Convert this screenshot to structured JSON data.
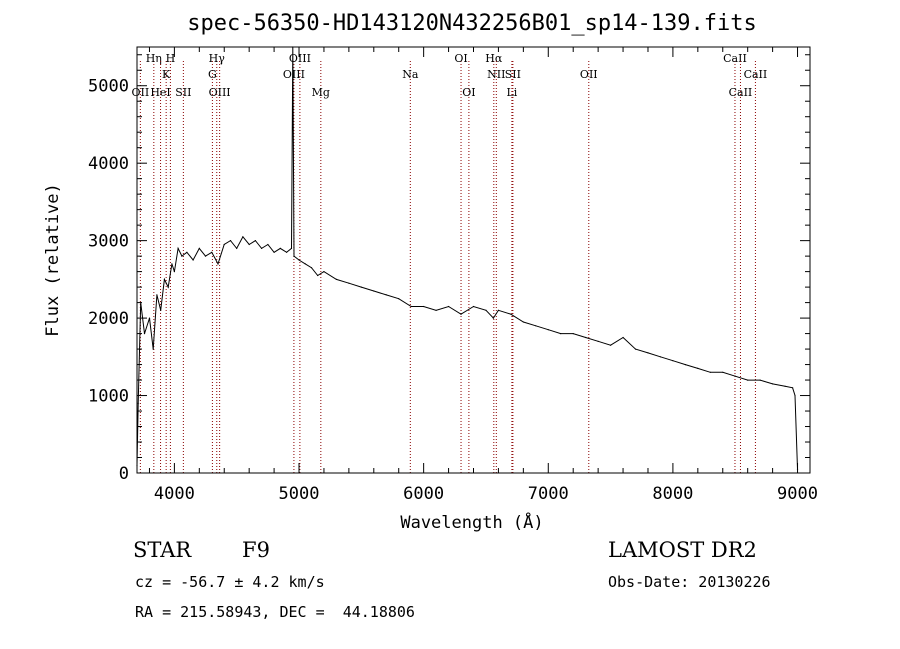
{
  "chart_data": {
    "type": "line",
    "title": "spec-56350-HD143120N432256B01_sp14-139.fits",
    "xlabel": "Wavelength (Å)",
    "ylabel": "Flux (relative)",
    "xlim": [
      3700,
      9100
    ],
    "ylim": [
      0,
      5500
    ],
    "x_ticks": [
      4000,
      5000,
      6000,
      7000,
      8000,
      9000
    ],
    "y_ticks": [
      0,
      1000,
      2000,
      3000,
      4000,
      5000
    ],
    "series": [
      {
        "name": "spectrum",
        "x": [
          3700,
          3710,
          3730,
          3760,
          3800,
          3830,
          3860,
          3890,
          3920,
          3950,
          3980,
          4000,
          4030,
          4060,
          4100,
          4150,
          4200,
          4250,
          4300,
          4350,
          4400,
          4450,
          4500,
          4550,
          4600,
          4650,
          4700,
          4750,
          4800,
          4850,
          4900,
          4940,
          4950,
          4960,
          5000,
          5050,
          5100,
          5150,
          5200,
          5300,
          5400,
          5500,
          5600,
          5700,
          5800,
          5900,
          6000,
          6100,
          6200,
          6300,
          6400,
          6500,
          6560,
          6600,
          6700,
          6800,
          6900,
          7000,
          7100,
          7200,
          7300,
          7400,
          7500,
          7600,
          7700,
          7800,
          7900,
          8000,
          8100,
          8200,
          8300,
          8400,
          8500,
          8600,
          8700,
          8800,
          8900,
          8960,
          8980,
          9000
        ],
        "y": [
          100,
          900,
          2200,
          1800,
          2000,
          1600,
          2300,
          2100,
          2500,
          2400,
          2700,
          2600,
          2900,
          2800,
          2850,
          2750,
          2900,
          2800,
          2850,
          2700,
          2950,
          3000,
          2900,
          3050,
          2950,
          3000,
          2900,
          2950,
          2850,
          2900,
          2850,
          2900,
          5500,
          2800,
          2750,
          2700,
          2650,
          2550,
          2600,
          2500,
          2450,
          2400,
          2350,
          2300,
          2250,
          2150,
          2150,
          2100,
          2150,
          2050,
          2150,
          2100,
          2000,
          2100,
          2050,
          1950,
          1900,
          1850,
          1800,
          1800,
          1750,
          1700,
          1650,
          1750,
          1600,
          1550,
          1500,
          1450,
          1400,
          1350,
          1300,
          1300,
          1250,
          1200,
          1200,
          1150,
          1120,
          1100,
          1000,
          50
        ]
      }
    ],
    "line_markers": [
      {
        "label": "OII",
        "wavelength": 3727,
        "row": 3
      },
      {
        "label": "Hη",
        "wavelength": 3835,
        "row": 1
      },
      {
        "label": "HeI",
        "wavelength": 3889,
        "row": 3
      },
      {
        "label": "K",
        "wavelength": 3934,
        "row": 2
      },
      {
        "label": "H",
        "wavelength": 3968,
        "row": 1
      },
      {
        "label": "SII",
        "wavelength": 4072,
        "row": 3
      },
      {
        "label": "Hγ",
        "wavelength": 4340,
        "row": 1
      },
      {
        "label": "G",
        "wavelength": 4305,
        "row": 2
      },
      {
        "label": "OIII",
        "wavelength": 4363,
        "row": 3
      },
      {
        "label": "OIII",
        "wavelength": 4959,
        "row": 2
      },
      {
        "label": "OIII",
        "wavelength": 5007,
        "row": 1
      },
      {
        "label": "Mg",
        "wavelength": 5175,
        "row": 3
      },
      {
        "label": "Na",
        "wavelength": 5893,
        "row": 2
      },
      {
        "label": "OI",
        "wavelength": 6300,
        "row": 1
      },
      {
        "label": "OI",
        "wavelength": 6363,
        "row": 3
      },
      {
        "label": "Hα",
        "wavelength": 6563,
        "row": 1
      },
      {
        "label": "NII",
        "wavelength": 6583,
        "row": 2
      },
      {
        "label": "SII",
        "wavelength": 6716,
        "row": 2
      },
      {
        "label": "Li",
        "wavelength": 6708,
        "row": 3
      },
      {
        "label": "OII",
        "wavelength": 7325,
        "row": 2
      },
      {
        "label": "CaII",
        "wavelength": 8498,
        "row": 1
      },
      {
        "label": "CaII",
        "wavelength": 8542,
        "row": 3
      },
      {
        "label": "CaII",
        "wavelength": 8662,
        "row": 2
      }
    ]
  },
  "info": {
    "object_class": "STAR",
    "subclass": "F9",
    "survey": "LAMOST DR2",
    "redshift": "cz = -56.7 ± 4.2 km/s",
    "obs_date": "Obs-Date: 20130226",
    "coords": "RA = 215.58943, DEC =  44.18806"
  },
  "colors": {
    "marker_line": "#8b0000",
    "spectrum": "#000000"
  }
}
